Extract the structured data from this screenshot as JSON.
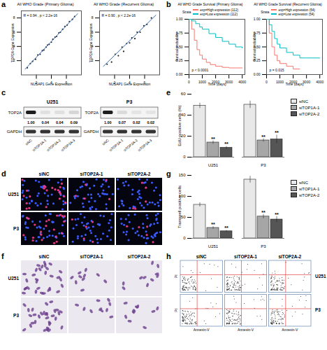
{
  "chart_data": [
    {
      "panel": "a",
      "type": "scatter",
      "title": "All WHO Grade (Primary Glioma)",
      "x_label": "NUSAP1 Gene Expression",
      "y_label": "TOP2A Gene Expression",
      "annotations": [
        "R = 0.94 , p < 2.2e-16"
      ],
      "color": "#222222",
      "x": [
        0.8,
        1.2,
        1.5,
        1.9,
        2.2,
        2.5,
        2.8,
        3.0,
        3.3,
        3.5,
        3.7,
        4.0,
        4.2,
        4.5,
        4.7,
        5.0,
        5.2,
        5.5,
        5.8,
        6.1,
        6.4,
        6.8,
        7.1
      ],
      "values": [
        1.0,
        1.6,
        1.9,
        2.2,
        2.8,
        2.9,
        3.4,
        3.5,
        3.9,
        4.2,
        4.3,
        4.6,
        5.0,
        5.3,
        5.4,
        5.9,
        6.0,
        6.4,
        6.8,
        7.0,
        7.5,
        7.8,
        8.2
      ],
      "fit_line": {
        "x": [
          0.5,
          7.5
        ],
        "values": [
          0.8,
          8.6
        ]
      },
      "xlim": [
        0,
        8
      ],
      "xticks": [
        2,
        4,
        6
      ],
      "ylim": [
        0,
        9
      ],
      "yticks": [
        2,
        4,
        6,
        8
      ]
    },
    {
      "type": "scatter",
      "title": "All WHO Grade (Recurrent Glioma)",
      "x_label": "NUSAP1 Gene Expression",
      "y_label": "TOP2A Gene Expression",
      "annotations": [
        "R = 0.90 , p < 2.2e-16"
      ],
      "color": "#222222",
      "x": [
        1.0,
        1.6,
        2.1,
        2.5,
        3.0,
        3.2,
        3.6,
        4.0,
        4.3,
        4.7,
        5.0,
        5.4,
        5.9,
        6.3,
        6.9
      ],
      "values": [
        1.5,
        1.8,
        2.9,
        2.7,
        3.9,
        3.3,
        4.4,
        4.5,
        5.2,
        5.1,
        6.0,
        6.0,
        6.9,
        7.1,
        8.0
      ],
      "fit_line": {
        "x": [
          0.5,
          7.5
        ],
        "values": [
          1.2,
          8.4
        ]
      },
      "xlim": [
        0,
        8
      ],
      "xticks": [
        2,
        4,
        6
      ],
      "ylim": [
        0,
        9
      ],
      "yticks": [
        2,
        4,
        6,
        8
      ]
    },
    {
      "panel": "b",
      "type": "line",
      "line_style": "step",
      "title": "All WHO Grade Survival (Primary Glioma)",
      "legend_title": "Strata",
      "legend": "top",
      "x_label": "Time (days)",
      "y_label": "Survival probability",
      "annotations": [
        "p < 0.0001"
      ],
      "series": [
        {
          "name": "exp=High expression (112)",
          "color": "#F8766D",
          "x": [
            0,
            200,
            400,
            600,
            800,
            1000,
            1300,
            1600,
            2000,
            2500,
            3000,
            3500,
            4000
          ],
          "values": [
            1,
            0.82,
            0.62,
            0.45,
            0.35,
            0.28,
            0.22,
            0.18,
            0.15,
            0.13,
            0.12,
            0.12,
            0.12
          ]
        },
        {
          "name": "exp=Low expression (112)",
          "color": "#00BFC4",
          "x": [
            0,
            200,
            500,
            800,
            1000,
            1500,
            2000,
            2500,
            3000,
            3500,
            4000
          ],
          "values": [
            1,
            0.97,
            0.92,
            0.86,
            0.82,
            0.74,
            0.67,
            0.6,
            0.55,
            0.5,
            0.48
          ]
        }
      ],
      "xlim": [
        0,
        4200
      ],
      "xticks": [
        0,
        1000,
        2000,
        3000,
        4000
      ],
      "ylim": [
        0,
        1
      ],
      "yticks": [
        {
          "value": 0,
          "label": "0.00"
        },
        {
          "value": 0.25,
          "label": "0.25"
        },
        {
          "value": 0.5,
          "label": "0.50"
        },
        {
          "value": 0.75,
          "label": "0.75"
        },
        {
          "value": 1,
          "label": "1.00"
        }
      ]
    },
    {
      "type": "line",
      "line_style": "step",
      "title": "All WHO Grade Survival (Recurrent Glioma)",
      "legend_title": "Strata",
      "legend": "top",
      "x_label": "Time (days)",
      "y_label": "Survival probability",
      "annotations": [
        "p = 0.015"
      ],
      "series": [
        {
          "name": "exp=High expression (54)",
          "color": "#F8766D",
          "x": [
            0,
            200,
            400,
            600,
            800,
            1000,
            1500,
            2000,
            2500
          ],
          "values": [
            1,
            0.75,
            0.5,
            0.35,
            0.25,
            0.2,
            0.15,
            0.1,
            0.1
          ]
        },
        {
          "name": "exp=Low expression (54)",
          "color": "#00BFC4",
          "x": [
            0,
            200,
            400,
            600,
            800,
            1000,
            1500,
            2000,
            2500,
            3000,
            4000
          ],
          "values": [
            1,
            0.9,
            0.78,
            0.65,
            0.55,
            0.48,
            0.4,
            0.35,
            0.3,
            0.3,
            0.3
          ]
        }
      ],
      "xlim": [
        0,
        4200
      ],
      "xticks": [
        0,
        1000,
        2000,
        3000,
        4000
      ],
      "ylim": [
        0,
        1
      ],
      "yticks": [
        {
          "value": 0,
          "label": "0.00"
        },
        {
          "value": 0.25,
          "label": "0.25"
        },
        {
          "value": 0.5,
          "label": "0.50"
        },
        {
          "value": 0.75,
          "label": "0.75"
        },
        {
          "value": 1,
          "label": "1.00"
        }
      ]
    },
    {
      "panel": "e",
      "type": "bar",
      "legend": "right",
      "y_label": "EdU-positive cells (%)",
      "categories": [
        "U251",
        "P3"
      ],
      "series": [
        {
          "name": "siNC",
          "color": "#e8e8e8",
          "values": [
            49,
            50
          ],
          "errors": [
            2.5,
            3.5
          ]
        },
        {
          "name": "siTOP1A-1",
          "color": "#a6a6a6",
          "values": [
            14,
            16
          ],
          "errors": [
            1.5,
            1.5
          ],
          "significance": [
            "**",
            "**"
          ]
        },
        {
          "name": "siTOP2A-2",
          "color": "#555555",
          "values": [
            9,
            17
          ],
          "errors": [
            1.2,
            4
          ],
          "significance": [
            "**",
            "**"
          ]
        }
      ],
      "ylim": [
        0,
        60
      ],
      "yticks": [
        0,
        20,
        40,
        60
      ]
    },
    {
      "panel": "g",
      "type": "bar",
      "legend": "right",
      "y_label": "Transwell positive cells",
      "categories": [
        "U251",
        "P3"
      ],
      "series": [
        {
          "name": "siNC",
          "color": "#e8e8e8",
          "values": [
            80,
            140
          ],
          "errors": [
            5,
            8
          ]
        },
        {
          "name": "siTOP1A-1",
          "color": "#a6a6a6",
          "values": [
            25,
            52
          ],
          "errors": [
            3,
            5
          ],
          "significance": [
            "**",
            "**"
          ]
        },
        {
          "name": "siTOP2A-2",
          "color": "#555555",
          "values": [
            17,
            45
          ],
          "errors": [
            2,
            7
          ],
          "significance": [
            "**",
            "**"
          ]
        }
      ],
      "ylim": [
        0,
        150
      ],
      "yticks": [
        0,
        50,
        100,
        150
      ]
    }
  ],
  "western_blot": {
    "panel": "c",
    "target": "TOP2A",
    "control": "GAPDH",
    "lanes": [
      "siNC",
      "siTOP2A-1",
      "siTOP2A-2",
      "siTOP2A-3"
    ],
    "cell_lines": [
      {
        "name": "U251",
        "levels": [
          1,
          0.04,
          0.04,
          0.09
        ],
        "level_labels": [
          "1.00",
          "0.04",
          "0.04",
          "0.09"
        ]
      },
      {
        "name": "P3",
        "levels": [
          1,
          0.07,
          0.02,
          0.02
        ],
        "level_labels": [
          "1.00",
          "0.07",
          "0.02",
          "0.02"
        ]
      }
    ]
  },
  "micrographs": [
    {
      "panel": "d",
      "type": "fluorescence",
      "columns": [
        "siNC",
        "siTOP2A-1",
        "siTOP2A-2"
      ],
      "rows": [
        "U251",
        "P3"
      ]
    },
    {
      "panel": "f",
      "type": "brightfield",
      "columns": [
        "siNC",
        "siTOP2A-1",
        "siTOP2A-2"
      ],
      "rows": [
        "U251",
        "P3"
      ]
    }
  ],
  "flow_cytometry": {
    "panel": "h",
    "columns": [
      "siNC",
      "siTOP2A-1",
      "siTOP2A-2"
    ],
    "rows": [
      "U251",
      "P3"
    ],
    "x_label": "Annexin-V",
    "y_label": "PI"
  }
}
